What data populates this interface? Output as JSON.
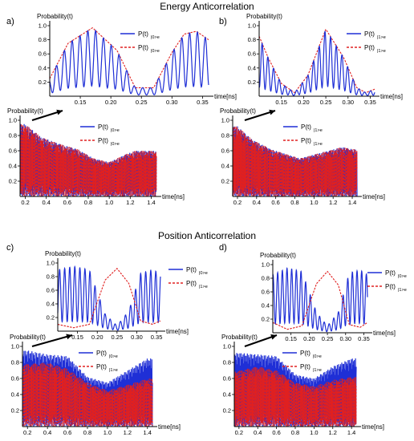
{
  "titles": {
    "top": "Energy Anticorrelation",
    "bottom": "Position Anticorrelation"
  },
  "panel_labels": [
    "a)",
    "b)",
    "c)",
    "d)"
  ],
  "colors": {
    "solid": "#1f2fd6",
    "dashed": "#e02020",
    "axis": "#000000"
  },
  "chart_data": [
    {
      "id": "a-inset",
      "type": "line",
      "panel": "a)",
      "ylabel": "Probability(t)",
      "xlabel": "time[ns]",
      "xlim": [
        0.1,
        0.36
      ],
      "ylim": [
        0,
        1.0
      ],
      "xticks": [
        "0.15",
        "0.20",
        "0.25",
        "0.30",
        "0.35"
      ],
      "yticks": [
        "0.2",
        "0.4",
        "0.6",
        "0.8",
        "1.0"
      ],
      "legend": [
        {
          "label": "P(t)",
          "sub": "|0>e",
          "style": "solid"
        },
        {
          "label": "P(t)",
          "sub": "|0>e",
          "style": "dashed"
        }
      ],
      "series": [
        {
          "style": "dashed",
          "x": [
            0.1,
            0.13,
            0.17,
            0.21,
            0.24,
            0.27,
            0.3,
            0.32,
            0.34,
            0.36
          ],
          "y": [
            0.25,
            0.75,
            0.97,
            0.65,
            0.12,
            0.12,
            0.62,
            0.88,
            0.92,
            0.8
          ]
        },
        {
          "style": "solid",
          "oscillation": "fast",
          "x": [
            0.1,
            0.13,
            0.17,
            0.21,
            0.24,
            0.27,
            0.3,
            0.32,
            0.34,
            0.36
          ],
          "y": [
            0.25,
            0.75,
            0.97,
            0.65,
            0.12,
            0.12,
            0.62,
            0.88,
            0.92,
            0.8
          ]
        }
      ]
    },
    {
      "id": "a-main",
      "type": "line",
      "panel": "a)",
      "ylabel": "Probability(t)",
      "xlabel": "time[ns]",
      "xlim": [
        0.15,
        1.45
      ],
      "ylim": [
        0,
        1.0
      ],
      "xticks": [
        "0.2",
        "0.4",
        "0.6",
        "0.8",
        "1.0",
        "1.2",
        "1.4"
      ],
      "yticks": [
        "0.2",
        "0.4",
        "0.6",
        "0.8",
        "1.0"
      ],
      "legend": [
        {
          "label": "P(t)",
          "sub": "|0>e",
          "style": "solid"
        },
        {
          "label": "P(t)",
          "sub": "|0>e",
          "style": "dashed"
        }
      ],
      "series": [
        {
          "style": "solid",
          "x": [
            0.2,
            0.35,
            0.55,
            0.7,
            0.85,
            1.0,
            1.15,
            1.25,
            1.4
          ],
          "y": [
            0.95,
            0.78,
            0.68,
            0.62,
            0.5,
            0.45,
            0.55,
            0.6,
            0.6
          ]
        },
        {
          "style": "dashed",
          "x": [
            0.2,
            0.35,
            0.55,
            0.7,
            0.85,
            1.0,
            1.15,
            1.25,
            1.4
          ],
          "y": [
            0.95,
            0.78,
            0.68,
            0.62,
            0.5,
            0.45,
            0.55,
            0.6,
            0.6
          ]
        }
      ]
    },
    {
      "id": "b-inset",
      "type": "line",
      "panel": "b)",
      "ylabel": "Probability(t)",
      "xlabel": "time[ns]",
      "xlim": [
        0.1,
        0.36
      ],
      "ylim": [
        0,
        1.0
      ],
      "xticks": [
        "0.15",
        "0.20",
        "0.25",
        "0.30",
        "0.35"
      ],
      "yticks": [
        "0.2",
        "0.4",
        "0.6",
        "0.8",
        "1.0"
      ],
      "legend": [
        {
          "label": "P(t)",
          "sub": "|1>e",
          "style": "solid"
        },
        {
          "label": "P(t)",
          "sub": "|1>e",
          "style": "dashed"
        }
      ],
      "series": [
        {
          "style": "dashed",
          "x": [
            0.1,
            0.12,
            0.15,
            0.18,
            0.21,
            0.25,
            0.29,
            0.32,
            0.34,
            0.36
          ],
          "y": [
            0.85,
            0.55,
            0.18,
            0.05,
            0.3,
            0.95,
            0.55,
            0.12,
            0.05,
            0.1
          ]
        },
        {
          "style": "solid",
          "oscillation": "fast",
          "x": [
            0.1,
            0.12,
            0.15,
            0.18,
            0.21,
            0.25,
            0.29,
            0.32,
            0.34,
            0.36
          ],
          "y": [
            0.85,
            0.55,
            0.18,
            0.05,
            0.3,
            0.95,
            0.55,
            0.12,
            0.05,
            0.1
          ]
        }
      ]
    },
    {
      "id": "b-main",
      "type": "line",
      "panel": "b)",
      "ylabel": "Probability(t)",
      "xlabel": "time[ns]",
      "xlim": [
        0.15,
        1.45
      ],
      "ylim": [
        0,
        1.0
      ],
      "xticks": [
        "0.2",
        "0.4",
        "0.6",
        "0.8",
        "1.0",
        "1.2",
        "1.4"
      ],
      "yticks": [
        "0.2",
        "0.4",
        "0.6",
        "0.8",
        "1.0"
      ],
      "legend": [
        {
          "label": "P(t)",
          "sub": "|1>e",
          "style": "solid"
        },
        {
          "label": "P(t)",
          "sub": "|1>e",
          "style": "dashed"
        }
      ],
      "series": [
        {
          "style": "solid",
          "x": [
            0.2,
            0.35,
            0.55,
            0.7,
            0.85,
            1.0,
            1.15,
            1.3,
            1.4
          ],
          "y": [
            0.92,
            0.75,
            0.62,
            0.56,
            0.5,
            0.55,
            0.6,
            0.65,
            0.62
          ]
        },
        {
          "style": "dashed",
          "x": [
            0.2,
            0.35,
            0.55,
            0.7,
            0.85,
            1.0,
            1.15,
            1.3,
            1.4
          ],
          "y": [
            0.92,
            0.75,
            0.62,
            0.56,
            0.5,
            0.55,
            0.6,
            0.65,
            0.62
          ]
        }
      ]
    },
    {
      "id": "c-inset",
      "type": "line",
      "panel": "c)",
      "ylabel": "Probability(t)",
      "xlabel": "time[ns]",
      "xlim": [
        0.1,
        0.36
      ],
      "ylim": [
        0,
        1.0
      ],
      "xticks": [
        "0.15",
        "0.20",
        "0.25",
        "0.30",
        "0.35"
      ],
      "yticks": [
        "0.2",
        "0.4",
        "0.6",
        "0.8",
        "1.0"
      ],
      "legend": [
        {
          "label": "P(t)",
          "sub": "|0>e",
          "style": "solid"
        },
        {
          "label": "P(t)",
          "sub": "|1>e",
          "style": "dashed"
        }
      ],
      "series": [
        {
          "style": "solid",
          "x": [
            0.1,
            0.14,
            0.18,
            0.22,
            0.25,
            0.28,
            0.31,
            0.34,
            0.36
          ],
          "y": [
            0.9,
            0.95,
            0.9,
            0.25,
            0.08,
            0.3,
            0.85,
            0.9,
            0.85
          ]
        },
        {
          "style": "dashed",
          "x": [
            0.1,
            0.14,
            0.18,
            0.22,
            0.25,
            0.28,
            0.31,
            0.34,
            0.36
          ],
          "y": [
            0.1,
            0.05,
            0.1,
            0.75,
            0.92,
            0.7,
            0.15,
            0.1,
            0.15
          ]
        }
      ]
    },
    {
      "id": "c-main",
      "type": "line",
      "panel": "c)",
      "ylabel": "Probability(t)",
      "xlabel": "time[ns]",
      "xlim": [
        0.15,
        1.45
      ],
      "ylim": [
        0,
        1.0
      ],
      "xticks": [
        "0.2",
        "0.4",
        "0.6",
        "0.8",
        "1.0",
        "1.2",
        "1.4"
      ],
      "yticks": [
        "0.2",
        "0.4",
        "0.6",
        "0.8",
        "1.0"
      ],
      "legend": [
        {
          "label": "P(t)",
          "sub": "|0>e",
          "style": "solid"
        },
        {
          "label": "P(t)",
          "sub": "|1>e",
          "style": "dashed"
        }
      ],
      "series": [
        {
          "style": "solid",
          "x": [
            0.2,
            0.4,
            0.6,
            0.8,
            1.0,
            1.2,
            1.4
          ],
          "y": [
            0.95,
            0.9,
            0.88,
            0.62,
            0.55,
            0.7,
            0.85
          ]
        },
        {
          "style": "dashed",
          "x": [
            0.2,
            0.4,
            0.6,
            0.8,
            1.0,
            1.2,
            1.4
          ],
          "y": [
            0.78,
            0.8,
            0.72,
            0.55,
            0.45,
            0.52,
            0.6
          ]
        }
      ]
    },
    {
      "id": "d-inset",
      "type": "line",
      "panel": "d)",
      "ylabel": "Probability(t)",
      "xlabel": "time[ns]",
      "xlim": [
        0.1,
        0.36
      ],
      "ylim": [
        0,
        1.0
      ],
      "xticks": [
        "0.15",
        "0.20",
        "0.25",
        "0.30",
        "0.35"
      ],
      "yticks": [
        "0.2",
        "0.4",
        "0.6",
        "0.8",
        "1.0"
      ],
      "legend": [
        {
          "label": "P(t)",
          "sub": "|0>e",
          "style": "solid"
        },
        {
          "label": "P(t)",
          "sub": "|1>e",
          "style": "dashed"
        }
      ],
      "series": [
        {
          "style": "solid",
          "x": [
            0.1,
            0.14,
            0.18,
            0.22,
            0.25,
            0.28,
            0.31,
            0.34,
            0.36
          ],
          "y": [
            0.85,
            0.95,
            0.9,
            0.3,
            0.1,
            0.3,
            0.88,
            0.92,
            0.85
          ]
        },
        {
          "style": "dashed",
          "x": [
            0.1,
            0.14,
            0.18,
            0.22,
            0.25,
            0.28,
            0.31,
            0.34,
            0.36
          ],
          "y": [
            0.15,
            0.05,
            0.1,
            0.72,
            0.9,
            0.7,
            0.12,
            0.08,
            0.15
          ]
        }
      ]
    },
    {
      "id": "d-main",
      "type": "line",
      "panel": "d)",
      "ylabel": "Probability(t)",
      "xlabel": "time[ns]",
      "xlim": [
        0.15,
        1.45
      ],
      "ylim": [
        0,
        1.0
      ],
      "xticks": [
        "0.2",
        "0.4",
        "0.6",
        "0.8",
        "1.0",
        "1.2",
        "1.4"
      ],
      "yticks": [
        "0.2",
        "0.4",
        "0.6",
        "0.8",
        "1.0"
      ],
      "legend": [
        {
          "label": "P(t)",
          "sub": "|0>e",
          "style": "solid"
        },
        {
          "label": "P(t)",
          "sub": "|1>e",
          "style": "dashed"
        }
      ],
      "series": [
        {
          "style": "solid",
          "x": [
            0.2,
            0.4,
            0.6,
            0.8,
            1.0,
            1.2,
            1.4
          ],
          "y": [
            0.92,
            0.9,
            0.88,
            0.65,
            0.6,
            0.75,
            0.85
          ]
        },
        {
          "style": "dashed",
          "x": [
            0.2,
            0.4,
            0.6,
            0.8,
            1.0,
            1.2,
            1.4
          ],
          "y": [
            0.7,
            0.75,
            0.7,
            0.55,
            0.5,
            0.58,
            0.62
          ]
        }
      ]
    }
  ]
}
